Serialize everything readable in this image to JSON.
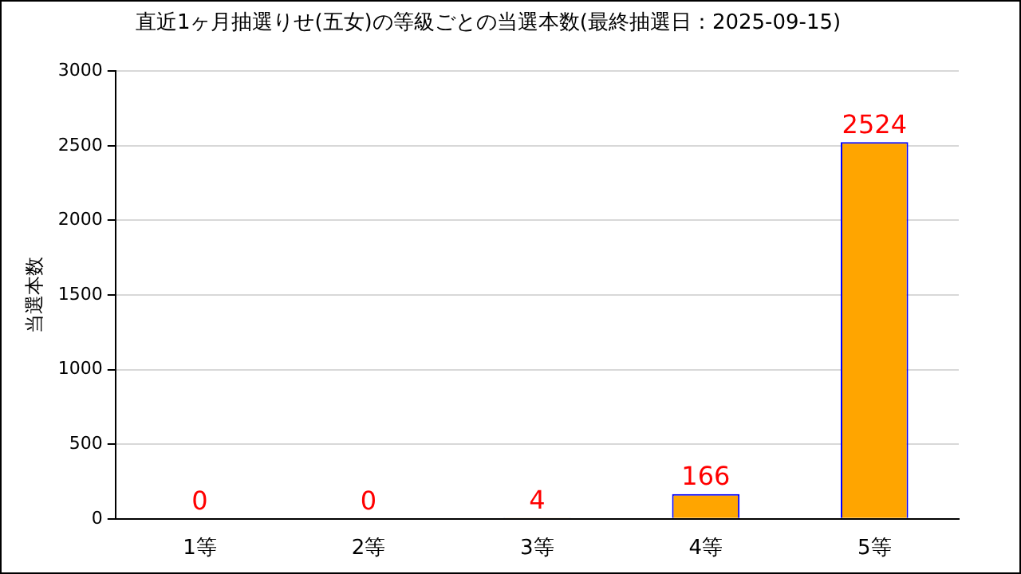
{
  "chart_data": {
    "type": "bar",
    "title": "直近1ヶ月抽選りせ(五女)の等級ごとの当選本数(最終抽選日：2025-09-15)",
    "ylabel": "当選本数",
    "categories": [
      "1等",
      "2等",
      "3等",
      "4等",
      "5等"
    ],
    "values": [
      0,
      0,
      4,
      166,
      2524
    ],
    "color": "#ffa500",
    "ylim": [
      0,
      3000
    ],
    "yticks": [
      0,
      500,
      1000,
      1500,
      2000,
      2500,
      3000
    ],
    "grid": "y",
    "data_labels": true,
    "legend": false
  }
}
